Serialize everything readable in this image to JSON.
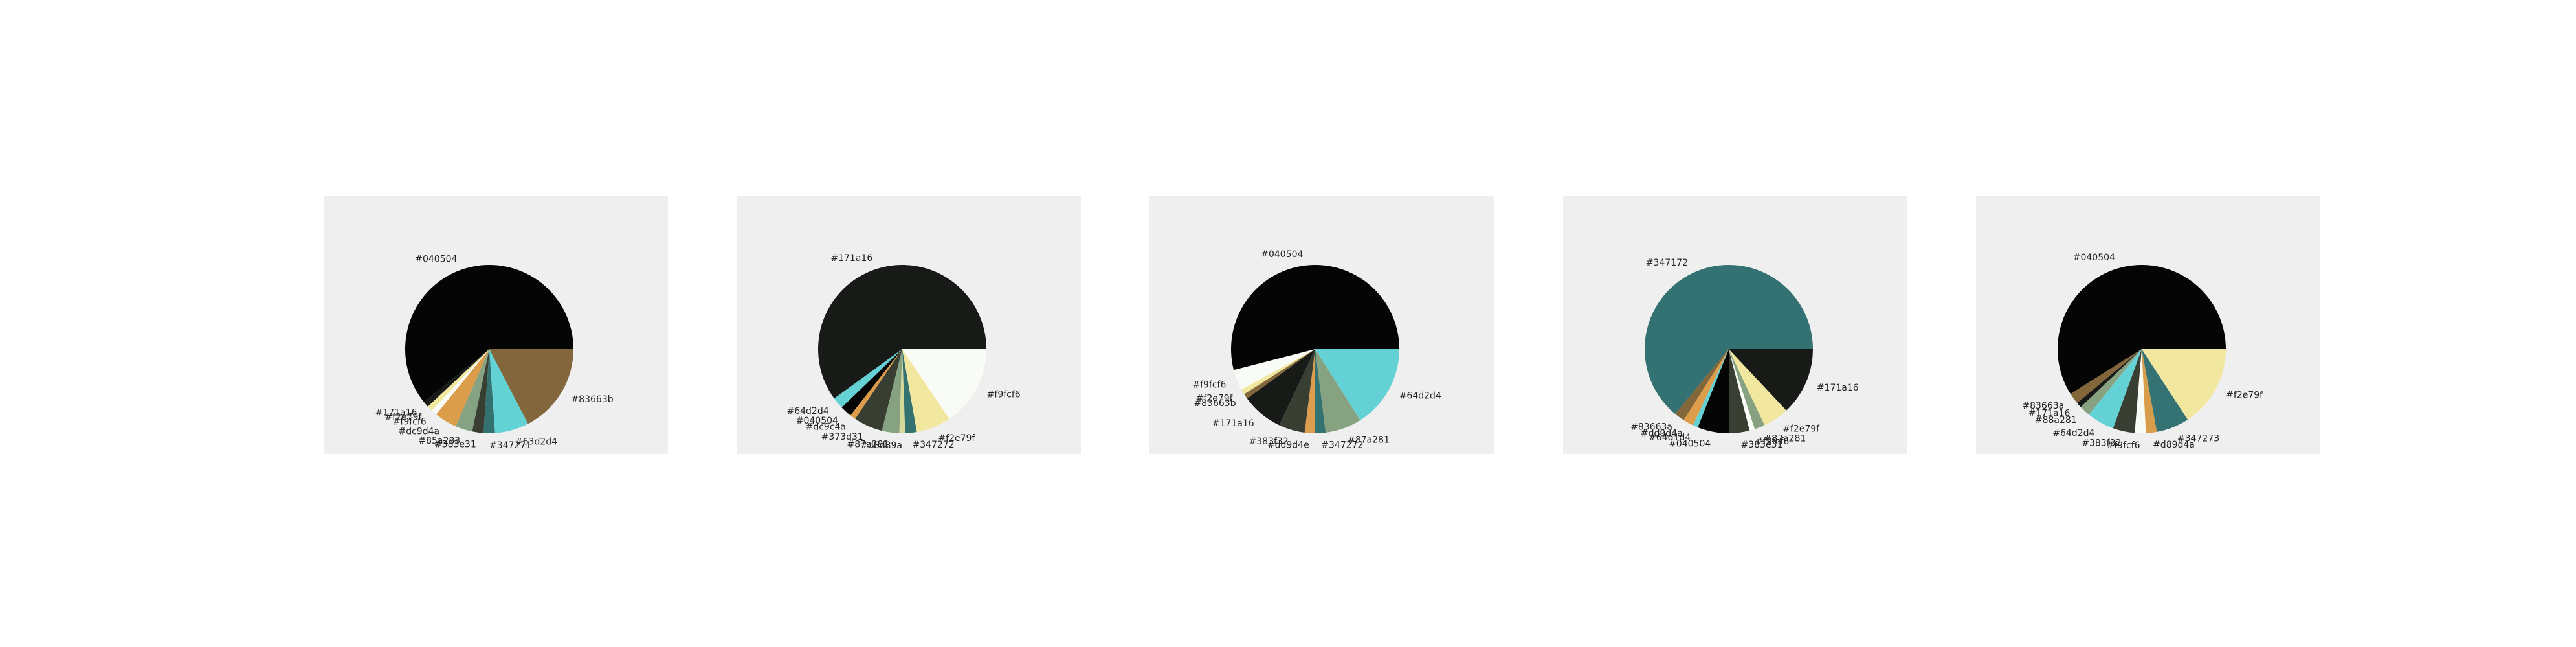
{
  "chart_data": [
    {
      "type": "pie",
      "categories": [
        "#040504",
        "#171a16",
        "#f2e79f",
        "#f9fcf6",
        "#dc9d4a",
        "#85a283",
        "#383e31",
        "#347271",
        "#63d2d4",
        "#83663b"
      ],
      "values": [
        56,
        1,
        1,
        1,
        4,
        3,
        2,
        2,
        6,
        16
      ],
      "colors": [
        "#040504",
        "#171a16",
        "#f2e79f",
        "#f9fcf6",
        "#dc9d4a",
        "#85a283",
        "#383e31",
        "#347271",
        "#63d2d4",
        "#83663b"
      ]
    },
    {
      "type": "pie",
      "categories": [
        "#171a16",
        "#64d2d4",
        "#040504",
        "#dc9c4a",
        "#373d31",
        "#87a281",
        "#d8d89a",
        "#347272",
        "#f2e79f",
        "#f9fcf6"
      ],
      "values": [
        54,
        2,
        2,
        1,
        5,
        3,
        1,
        2,
        6,
        14
      ],
      "colors": [
        "#171a16",
        "#64d2d4",
        "#040504",
        "#dc9c4a",
        "#373d31",
        "#87a281",
        "#d8d89a",
        "#347272",
        "#f2e79f",
        "#f9fcf6"
      ]
    },
    {
      "type": "pie",
      "categories": [
        "#040504",
        "#f9fcf6",
        "#f2e79f",
        "#83663b",
        "#171a16",
        "#383f32",
        "#dd9d4e",
        "#347272",
        "#87a281",
        "#64d2d4"
      ],
      "values": [
        54,
        4,
        1,
        1,
        8,
        5,
        2,
        2,
        7,
        16
      ],
      "colors": [
        "#040504",
        "#f9fcf6",
        "#f2e79f",
        "#83663b",
        "#171a16",
        "#383f32",
        "#dd9d4e",
        "#347272",
        "#87a281",
        "#64d2d4"
      ]
    },
    {
      "type": "pie",
      "categories": [
        "#347172",
        "#83663a",
        "#dd9d4a",
        "#64d1d4",
        "#040504",
        "#383e31",
        "#f9fcf6",
        "#87a281",
        "#f2e79f",
        "#171a16"
      ],
      "values": [
        64,
        2,
        2,
        1,
        6,
        4,
        1,
        2,
        5,
        13
      ],
      "colors": [
        "#347172",
        "#83663a",
        "#dd9d4a",
        "#64d1d4",
        "#040504",
        "#383e31",
        "#f9fcf6",
        "#87a281",
        "#f2e79f",
        "#171a16"
      ]
    },
    {
      "type": "pie",
      "categories": [
        "#040504",
        "#83663a",
        "#171a16",
        "#88a281",
        "#64d2d4",
        "#383f32",
        "#f9fcf6",
        "#d89d4a",
        "#347273",
        "#f2e79f"
      ],
      "values": [
        56,
        2,
        1,
        2,
        5,
        4,
        2,
        2,
        6,
        15
      ],
      "colors": [
        "#040504",
        "#83663a",
        "#171a16",
        "#88a281",
        "#64d2d4",
        "#383f32",
        "#f9fcf6",
        "#d89d4a",
        "#347273",
        "#f2e79f"
      ]
    }
  ]
}
